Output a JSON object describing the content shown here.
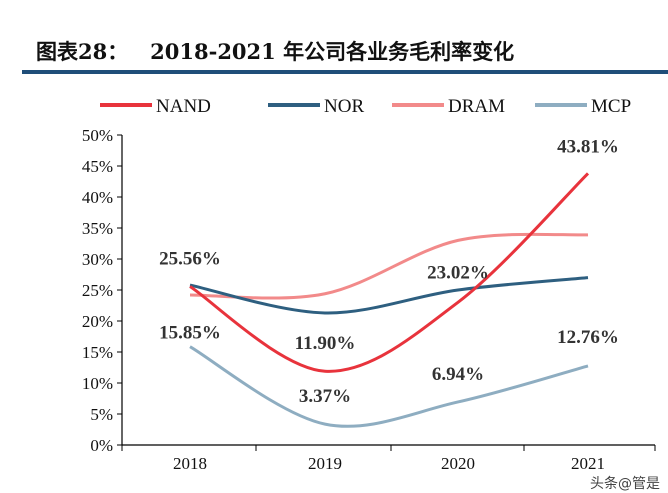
{
  "header": {
    "title": "图表28：   2018-2021 年公司各业务毛利率变化"
  },
  "watermark": "头条@管是",
  "chart_data": {
    "type": "line",
    "title": "",
    "xlabel": "",
    "ylabel": "",
    "categories": [
      "2018",
      "2019",
      "2020",
      "2021"
    ],
    "ylim": [
      0,
      50
    ],
    "yticks": [
      "0%",
      "5%",
      "10%",
      "15%",
      "20%",
      "25%",
      "30%",
      "35%",
      "40%",
      "45%",
      "50%"
    ],
    "grid": false,
    "legend": "top",
    "smooth": true,
    "series": [
      {
        "name": "NAND",
        "color": "#e8333c",
        "values": [
          25.56,
          11.9,
          23.02,
          43.81
        ],
        "labels": [
          "25.56%",
          "11.90%",
          "23.02%",
          "43.81%"
        ]
      },
      {
        "name": "NOR",
        "color": "#2e5f80",
        "values": [
          25.8,
          21.3,
          25.0,
          27.0
        ]
      },
      {
        "name": "DRAM",
        "color": "#f28a8a",
        "values": [
          24.2,
          24.4,
          33.0,
          33.9
        ]
      },
      {
        "name": "MCP",
        "color": "#8eadc1",
        "values": [
          15.85,
          3.37,
          6.94,
          12.76
        ],
        "labels": [
          "15.85%",
          "3.37%",
          "6.94%",
          "12.76%"
        ]
      }
    ]
  }
}
